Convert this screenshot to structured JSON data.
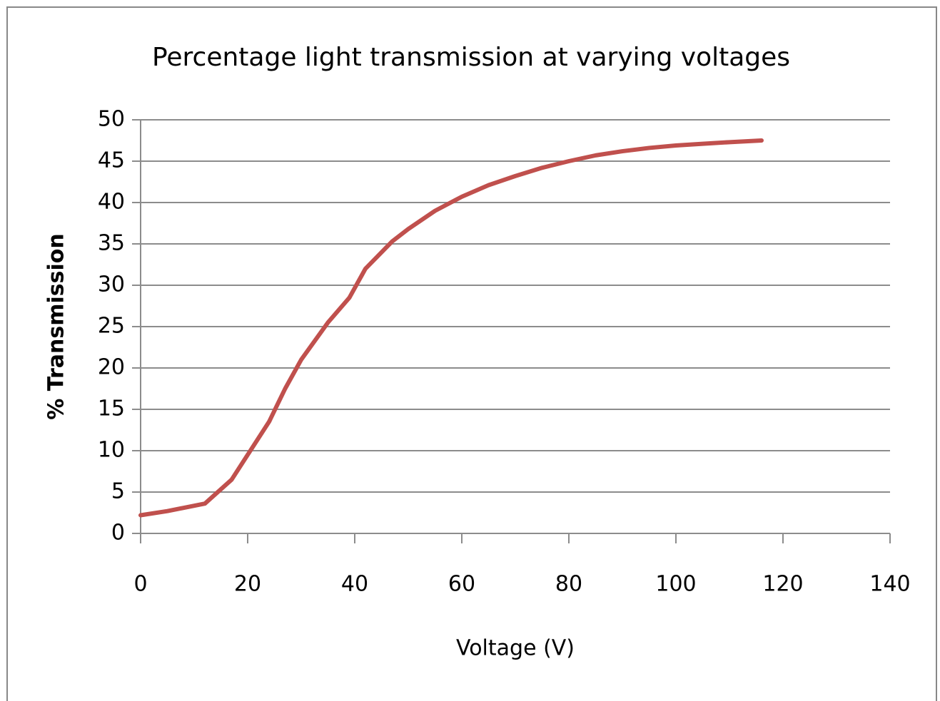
{
  "chart_data": {
    "type": "line",
    "title": "Percentage light transmission at varying voltages",
    "x_label": "Voltage (V)",
    "y_label": "% Transmission",
    "x": [
      0,
      5,
      12,
      17,
      20,
      24,
      27,
      30,
      35,
      39,
      42,
      47,
      50,
      55,
      60,
      65,
      70,
      75,
      80,
      85,
      90,
      95,
      100,
      105,
      110,
      116
    ],
    "series": [
      {
        "name": "% Transmission",
        "color": "#c0504d",
        "values": [
          2.2,
          2.7,
          3.6,
          6.5,
          9.5,
          13.5,
          17.5,
          21,
          25.5,
          28.5,
          32,
          35.3,
          36.8,
          39,
          40.7,
          42.1,
          43.2,
          44.2,
          45,
          45.7,
          46.2,
          46.6,
          46.9,
          47.1,
          47.3,
          47.5
        ]
      }
    ],
    "xlim": [
      0,
      140
    ],
    "xticks": [
      0,
      20,
      40,
      60,
      80,
      100,
      120,
      140
    ],
    "ylim": [
      0,
      50
    ],
    "yticks": [
      0,
      5,
      10,
      15,
      20,
      25,
      30,
      35,
      40,
      45,
      50
    ],
    "grid": true
  }
}
